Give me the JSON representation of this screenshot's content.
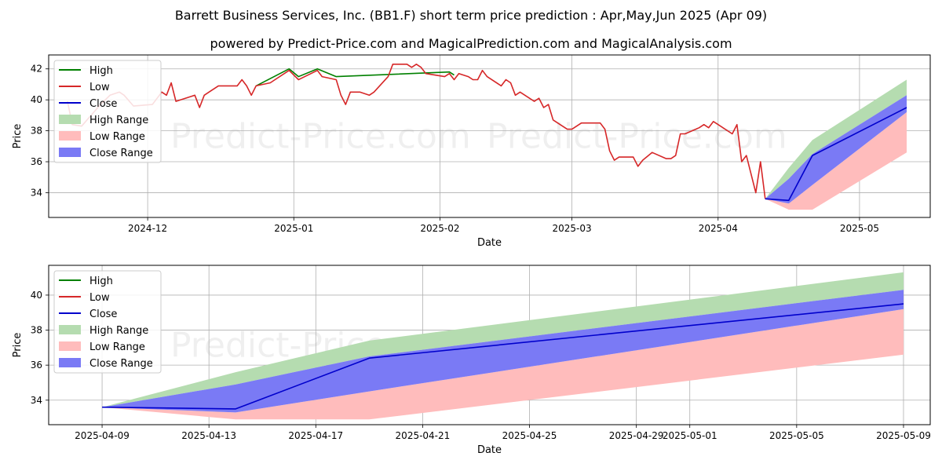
{
  "header": {
    "title": "Barrett Business Services, Inc. (BB1.F) short term price prediction : Apr,May,Jun 2025 (Apr 09)",
    "subtitle": "powered by Predict-Price.com and MagicalPrediction.com and MagicalAnalysis.com"
  },
  "watermark": "Predict-Price.com",
  "colors": {
    "high": "#008000",
    "low": "#d62728",
    "close": "#0000cc",
    "high_range": "#b5dcb0",
    "low_range": "#ffbcbc",
    "close_range": "#7a7af5",
    "grid": "#b0b0b0"
  },
  "legend": [
    {
      "key": "high",
      "label": "High",
      "kind": "line"
    },
    {
      "key": "low",
      "label": "Low",
      "kind": "line"
    },
    {
      "key": "close",
      "label": "Close",
      "kind": "line"
    },
    {
      "key": "high_range",
      "label": "High Range",
      "kind": "patch"
    },
    {
      "key": "low_range",
      "label": "Low Range",
      "kind": "patch"
    },
    {
      "key": "close_range",
      "label": "Close Range",
      "kind": "patch"
    }
  ],
  "chart_data": [
    {
      "type": "line",
      "name": "history-and-forecast",
      "xlabel": "Date",
      "ylabel": "Price",
      "xlim": [
        "2024-11-10",
        "2025-05-16"
      ],
      "ylim": [
        32.4,
        42.9
      ],
      "yticks": [
        34,
        36,
        38,
        40,
        42
      ],
      "xticks": [
        {
          "date": "2024-12-01",
          "label": "2024-12"
        },
        {
          "date": "2025-01-01",
          "label": "2025-01"
        },
        {
          "date": "2025-02-01",
          "label": "2025-02"
        },
        {
          "date": "2025-03-01",
          "label": "2025-03"
        },
        {
          "date": "2025-04-01",
          "label": "2025-04"
        },
        {
          "date": "2025-05-01",
          "label": "2025-05"
        }
      ],
      "legend_position": "top-left",
      "history_low": [
        [
          "2024-11-14",
          39.9
        ],
        [
          "2024-11-15",
          38.4
        ],
        [
          "2024-11-17",
          38.3
        ],
        [
          "2024-11-19",
          39.0
        ],
        [
          "2024-11-21",
          39.7
        ],
        [
          "2024-11-23",
          40.3
        ],
        [
          "2024-11-25",
          40.5
        ],
        [
          "2024-11-26",
          40.3
        ],
        [
          "2024-11-28",
          39.6
        ],
        [
          "2024-12-02",
          39.7
        ],
        [
          "2024-12-04",
          40.5
        ],
        [
          "2024-12-05",
          40.3
        ],
        [
          "2024-12-06",
          41.1
        ],
        [
          "2024-12-07",
          39.9
        ],
        [
          "2024-12-10",
          40.2
        ],
        [
          "2024-12-11",
          40.3
        ],
        [
          "2024-12-12",
          39.5
        ],
        [
          "2024-12-13",
          40.3
        ],
        [
          "2024-12-14",
          40.5
        ],
        [
          "2024-12-16",
          40.9
        ],
        [
          "2024-12-20",
          40.9
        ],
        [
          "2024-12-21",
          41.3
        ],
        [
          "2024-12-22",
          40.9
        ],
        [
          "2024-12-23",
          40.3
        ],
        [
          "2024-12-24",
          40.9
        ],
        [
          "2024-12-27",
          41.1
        ],
        [
          "2024-12-28",
          41.3
        ],
        [
          "2024-12-31",
          41.9
        ],
        [
          "2025-01-02",
          41.3
        ],
        [
          "2025-01-06",
          41.9
        ],
        [
          "2025-01-07",
          41.5
        ],
        [
          "2025-01-10",
          41.3
        ],
        [
          "2025-01-11",
          40.3
        ],
        [
          "2025-01-12",
          39.7
        ],
        [
          "2025-01-13",
          40.5
        ],
        [
          "2025-01-15",
          40.5
        ],
        [
          "2025-01-17",
          40.3
        ],
        [
          "2025-01-18",
          40.5
        ],
        [
          "2025-01-21",
          41.5
        ],
        [
          "2025-01-22",
          42.3
        ],
        [
          "2025-01-25",
          42.3
        ],
        [
          "2025-01-26",
          42.1
        ],
        [
          "2025-01-27",
          42.3
        ],
        [
          "2025-01-28",
          42.1
        ],
        [
          "2025-01-29",
          41.7
        ],
        [
          "2025-02-02",
          41.5
        ],
        [
          "2025-02-03",
          41.7
        ],
        [
          "2025-02-04",
          41.3
        ],
        [
          "2025-02-05",
          41.7
        ],
        [
          "2025-02-07",
          41.5
        ],
        [
          "2025-02-08",
          41.3
        ],
        [
          "2025-02-09",
          41.3
        ],
        [
          "2025-02-10",
          41.9
        ],
        [
          "2025-02-11",
          41.5
        ],
        [
          "2025-02-14",
          40.9
        ],
        [
          "2025-02-15",
          41.3
        ],
        [
          "2025-02-16",
          41.1
        ],
        [
          "2025-02-17",
          40.3
        ],
        [
          "2025-02-18",
          40.5
        ],
        [
          "2025-02-21",
          39.9
        ],
        [
          "2025-02-22",
          40.1
        ],
        [
          "2025-02-23",
          39.5
        ],
        [
          "2025-02-24",
          39.7
        ],
        [
          "2025-02-25",
          38.7
        ],
        [
          "2025-02-27",
          38.3
        ],
        [
          "2025-02-28",
          38.1
        ],
        [
          "2025-03-01",
          38.1
        ],
        [
          "2025-03-03",
          38.5
        ],
        [
          "2025-03-07",
          38.5
        ],
        [
          "2025-03-08",
          38.1
        ],
        [
          "2025-03-09",
          36.7
        ],
        [
          "2025-03-10",
          36.1
        ],
        [
          "2025-03-11",
          36.3
        ],
        [
          "2025-03-14",
          36.3
        ],
        [
          "2025-03-15",
          35.7
        ],
        [
          "2025-03-16",
          36.1
        ],
        [
          "2025-03-18",
          36.6
        ],
        [
          "2025-03-21",
          36.2
        ],
        [
          "2025-03-22",
          36.2
        ],
        [
          "2025-03-23",
          36.4
        ],
        [
          "2025-03-24",
          37.8
        ],
        [
          "2025-03-25",
          37.8
        ],
        [
          "2025-03-28",
          38.2
        ],
        [
          "2025-03-29",
          38.4
        ],
        [
          "2025-03-30",
          38.2
        ],
        [
          "2025-03-31",
          38.6
        ],
        [
          "2025-04-01",
          38.4
        ],
        [
          "2025-04-04",
          37.8
        ],
        [
          "2025-04-05",
          38.4
        ],
        [
          "2025-04-06",
          36.0
        ],
        [
          "2025-04-07",
          36.4
        ],
        [
          "2025-04-08",
          35.2
        ],
        [
          "2025-04-09",
          34.0
        ],
        [
          "2025-04-10",
          36.0
        ],
        [
          "2025-04-11",
          33.6
        ]
      ],
      "history_high": [
        [
          "2024-12-24",
          40.9
        ],
        [
          "2024-12-31",
          42.0
        ],
        [
          "2025-01-02",
          41.5
        ],
        [
          "2025-01-06",
          42.0
        ],
        [
          "2025-01-10",
          41.5
        ],
        [
          "2025-02-03",
          41.8
        ],
        [
          "2025-02-04",
          41.6
        ]
      ],
      "forecast": {
        "dates": [
          "2025-04-11",
          "2025-04-16",
          "2025-04-21",
          "2025-05-11"
        ],
        "close": [
          33.6,
          33.5,
          36.4,
          39.5
        ],
        "high_upper": [
          33.6,
          35.6,
          37.4,
          41.3
        ],
        "close_upper": [
          33.6,
          34.9,
          36.5,
          40.3
        ],
        "close_lower": [
          33.6,
          33.3,
          34.5,
          39.2
        ],
        "low_lower": [
          33.6,
          32.9,
          32.9,
          36.6
        ]
      }
    },
    {
      "type": "line",
      "name": "forecast-zoom",
      "xlabel": "Date",
      "ylabel": "Price",
      "xlim": [
        "2025-04-07",
        "2025-05-10"
      ],
      "ylim": [
        32.6,
        41.7
      ],
      "yticks": [
        34,
        36,
        38,
        40
      ],
      "xticks": [
        {
          "date": "2025-04-09",
          "label": "2025-04-09"
        },
        {
          "date": "2025-04-13",
          "label": "2025-04-13"
        },
        {
          "date": "2025-04-17",
          "label": "2025-04-17"
        },
        {
          "date": "2025-04-21",
          "label": "2025-04-21"
        },
        {
          "date": "2025-04-25",
          "label": "2025-04-25"
        },
        {
          "date": "2025-04-29",
          "label": "2025-04-29"
        },
        {
          "date": "2025-05-01",
          "label": "2025-05-01"
        },
        {
          "date": "2025-05-05",
          "label": "2025-05-05"
        },
        {
          "date": "2025-05-09",
          "label": "2025-05-09"
        }
      ],
      "legend_position": "top-left",
      "forecast": {
        "dates": [
          "2025-04-09",
          "2025-04-14",
          "2025-04-19",
          "2025-05-09"
        ],
        "close": [
          33.6,
          33.5,
          36.4,
          39.5
        ],
        "high_upper": [
          33.6,
          35.6,
          37.4,
          41.3
        ],
        "close_upper": [
          33.6,
          34.9,
          36.5,
          40.3
        ],
        "close_lower": [
          33.6,
          33.3,
          34.5,
          39.2
        ],
        "low_lower": [
          33.6,
          32.9,
          32.9,
          36.6
        ]
      }
    }
  ]
}
